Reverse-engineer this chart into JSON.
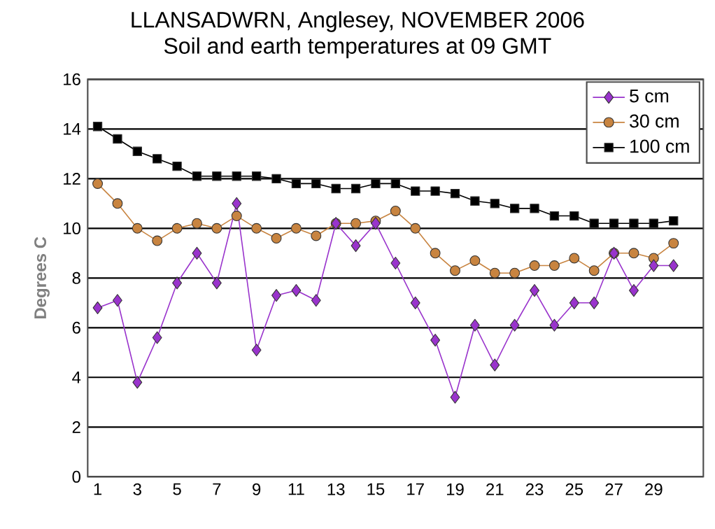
{
  "chart_data": {
    "type": "line",
    "title": "LLANSADWRN, Anglesey, NOVEMBER 2006",
    "subtitle": "Soil and earth temperatures at 09 GMT",
    "ylabel": "Degrees C",
    "x": [
      1,
      2,
      3,
      4,
      5,
      6,
      7,
      8,
      9,
      10,
      11,
      12,
      13,
      14,
      15,
      16,
      17,
      18,
      19,
      20,
      21,
      22,
      23,
      24,
      25,
      26,
      27,
      28,
      29,
      30
    ],
    "series": [
      {
        "name": "5 cm",
        "color": "#9933cc",
        "marker": "diamond",
        "values": [
          6.8,
          7.1,
          3.8,
          5.6,
          7.8,
          9.0,
          7.8,
          11.0,
          5.1,
          7.3,
          7.5,
          7.1,
          10.2,
          9.3,
          10.2,
          8.6,
          7.0,
          5.5,
          3.2,
          6.1,
          4.5,
          6.1,
          7.5,
          6.1,
          7.0,
          7.0,
          9.0,
          7.5,
          8.5,
          8.5
        ]
      },
      {
        "name": "30 cm",
        "color": "#c88440",
        "marker": "circle",
        "values": [
          11.8,
          11.0,
          10.0,
          9.5,
          10.0,
          10.2,
          10.0,
          10.5,
          10.0,
          9.6,
          10.0,
          9.7,
          10.2,
          10.2,
          10.3,
          10.7,
          10.0,
          9.0,
          8.3,
          8.7,
          8.2,
          8.2,
          8.5,
          8.5,
          8.8,
          8.3,
          9.0,
          9.0,
          8.8,
          9.4
        ]
      },
      {
        "name": "100 cm",
        "color": "#000000",
        "marker": "square",
        "values": [
          14.1,
          13.6,
          13.1,
          12.8,
          12.5,
          12.1,
          12.1,
          12.1,
          12.1,
          12.0,
          11.8,
          11.8,
          11.6,
          11.6,
          11.8,
          11.8,
          11.5,
          11.5,
          11.4,
          11.1,
          11.0,
          10.8,
          10.8,
          10.5,
          10.5,
          10.2,
          10.2,
          10.2,
          10.2,
          10.3
        ]
      }
    ],
    "xlim": [
      0.5,
      31.5
    ],
    "ylim": [
      0,
      16
    ],
    "xticks": [
      1,
      3,
      5,
      7,
      9,
      11,
      13,
      15,
      17,
      19,
      21,
      23,
      25,
      27,
      29
    ],
    "yticks": [
      0,
      2,
      4,
      6,
      8,
      10,
      12,
      14,
      16
    ],
    "grid": "y",
    "legend": "top right"
  }
}
